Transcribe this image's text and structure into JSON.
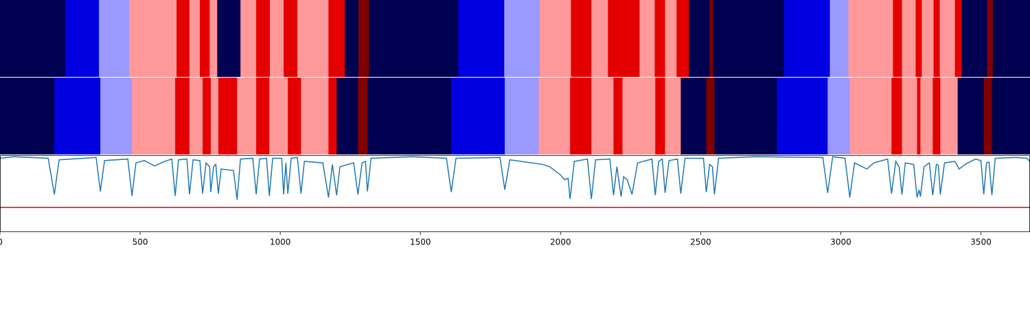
{
  "chart_data": [
    {
      "type": "strip",
      "breaks": [
        0,
        233,
        353,
        461,
        630,
        676,
        713,
        748,
        775,
        858,
        914,
        963,
        1012,
        1061,
        1172,
        1230,
        1279,
        1316,
        1635,
        1799,
        1926,
        2037,
        2110,
        2169,
        2282,
        2336,
        2373,
        2414,
        2458,
        2532,
        2544,
        2797,
        2961,
        3027,
        3186,
        3218,
        3267,
        3289,
        3331,
        3353,
        3407,
        3431,
        3522,
        3542,
        3675
      ],
      "levels": [
        0,
        1,
        2,
        3,
        4,
        3,
        4,
        3,
        0,
        3,
        4,
        3,
        4,
        3,
        4,
        0,
        5,
        0,
        1,
        2,
        3,
        4,
        3,
        4,
        3,
        4,
        3,
        4,
        0,
        5,
        0,
        1,
        2,
        3,
        4,
        3,
        4,
        3,
        4,
        3,
        4,
        0,
        5,
        0
      ],
      "palette": [
        "#000050",
        "#0000e0",
        "#9999ff",
        "#ff9999",
        "#e50000",
        "#800000"
      ],
      "xlim": [
        0,
        3675
      ]
    },
    {
      "type": "strip",
      "breaks": [
        0,
        194,
        358,
        471,
        625,
        676,
        723,
        752,
        779,
        846,
        914,
        961,
        1027,
        1074,
        1172,
        1201,
        1277,
        1311,
        1610,
        1801,
        1922,
        2034,
        2110,
        2189,
        2221,
        2338,
        2373,
        2429,
        2520,
        2549,
        2772,
        2953,
        3032,
        3181,
        3218,
        3272,
        3284,
        3328,
        3355,
        3417,
        3510,
        3539,
        3675
      ],
      "levels": [
        0,
        1,
        2,
        3,
        4,
        3,
        4,
        3,
        4,
        3,
        4,
        3,
        4,
        3,
        4,
        0,
        5,
        0,
        1,
        2,
        3,
        4,
        3,
        4,
        3,
        4,
        3,
        0,
        5,
        0,
        1,
        2,
        3,
        4,
        3,
        4,
        3,
        4,
        3,
        0,
        5,
        0
      ],
      "palette": [
        "#000050",
        "#0000e0",
        "#9999ff",
        "#ff9999",
        "#e50000",
        "#800000"
      ],
      "xlim": [
        0,
        3675
      ]
    },
    {
      "type": "line",
      "x": [
        0,
        49,
        172,
        194,
        211,
        343,
        358,
        373,
        456,
        471,
        485,
        515,
        551,
        588,
        613,
        625,
        637,
        667,
        676,
        689,
        713,
        723,
        735,
        748,
        752,
        762,
        770,
        779,
        789,
        833,
        846,
        858,
        902,
        914,
        926,
        951,
        961,
        973,
        1005,
        1012,
        1020,
        1027,
        1039,
        1061,
        1074,
        1086,
        1152,
        1172,
        1186,
        1201,
        1213,
        1262,
        1277,
        1292,
        1304,
        1311,
        1324,
        1471,
        1593,
        1610,
        1627,
        1784,
        1801,
        1819,
        1936,
        1961,
        1998,
        2015,
        2027,
        2034,
        2049,
        2096,
        2110,
        2125,
        2176,
        2189,
        2201,
        2216,
        2225,
        2238,
        2255,
        2275,
        2326,
        2338,
        2350,
        2363,
        2373,
        2387,
        2417,
        2429,
        2444,
        2510,
        2520,
        2532,
        2542,
        2549,
        2564,
        2696,
        2936,
        2953,
        2971,
        3015,
        3032,
        3049,
        3093,
        3118,
        3167,
        3181,
        3196,
        3208,
        3218,
        3230,
        3260,
        3272,
        3279,
        3284,
        3297,
        3316,
        3328,
        3341,
        3348,
        3355,
        3370,
        3407,
        3422,
        3444,
        3480,
        3500,
        3510,
        3520,
        3529,
        3539,
        3551,
        3627,
        3664,
        3674
      ],
      "values": [
        0.96,
        0.98,
        0.96,
        0.49,
        0.94,
        0.97,
        0.53,
        0.93,
        0.95,
        0.47,
        0.9,
        0.93,
        0.86,
        0.92,
        0.95,
        0.47,
        0.94,
        0.95,
        0.49,
        0.94,
        0.93,
        0.5,
        0.9,
        0.85,
        0.52,
        0.85,
        0.88,
        0.5,
        0.82,
        0.8,
        0.42,
        0.95,
        0.96,
        0.49,
        0.95,
        0.96,
        0.47,
        0.96,
        0.96,
        0.49,
        0.9,
        0.5,
        0.96,
        0.97,
        0.5,
        0.92,
        0.9,
        0.45,
        0.88,
        0.48,
        0.85,
        0.9,
        0.49,
        0.9,
        0.92,
        0.53,
        0.96,
        0.98,
        0.96,
        0.52,
        0.96,
        0.97,
        0.55,
        0.94,
        0.88,
        0.85,
        0.75,
        0.68,
        0.7,
        0.43,
        0.92,
        0.95,
        0.43,
        0.94,
        0.95,
        0.48,
        0.85,
        0.46,
        0.72,
        0.68,
        0.49,
        0.9,
        0.95,
        0.48,
        0.92,
        0.95,
        0.51,
        0.93,
        0.95,
        0.5,
        0.96,
        0.96,
        0.52,
        0.88,
        0.85,
        0.49,
        0.96,
        0.98,
        0.97,
        0.51,
        0.98,
        0.96,
        0.45,
        0.9,
        0.82,
        0.9,
        0.95,
        0.5,
        0.92,
        0.85,
        0.49,
        0.9,
        0.88,
        0.45,
        0.55,
        0.46,
        0.85,
        0.9,
        0.48,
        0.88,
        0.87,
        0.49,
        0.9,
        0.92,
        0.82,
        0.88,
        0.95,
        0.93,
        0.49,
        0.9,
        0.91,
        0.48,
        0.96,
        0.97,
        0.96,
        0.92
      ],
      "color": "#1f77b4",
      "threshold": 0.32,
      "threshold_color": "#e00000",
      "xlim": [
        0,
        3675
      ],
      "ylim": [
        0,
        1
      ],
      "xticks": [
        0,
        500,
        1000,
        1500,
        2000,
        2500,
        3000,
        3500
      ]
    }
  ]
}
